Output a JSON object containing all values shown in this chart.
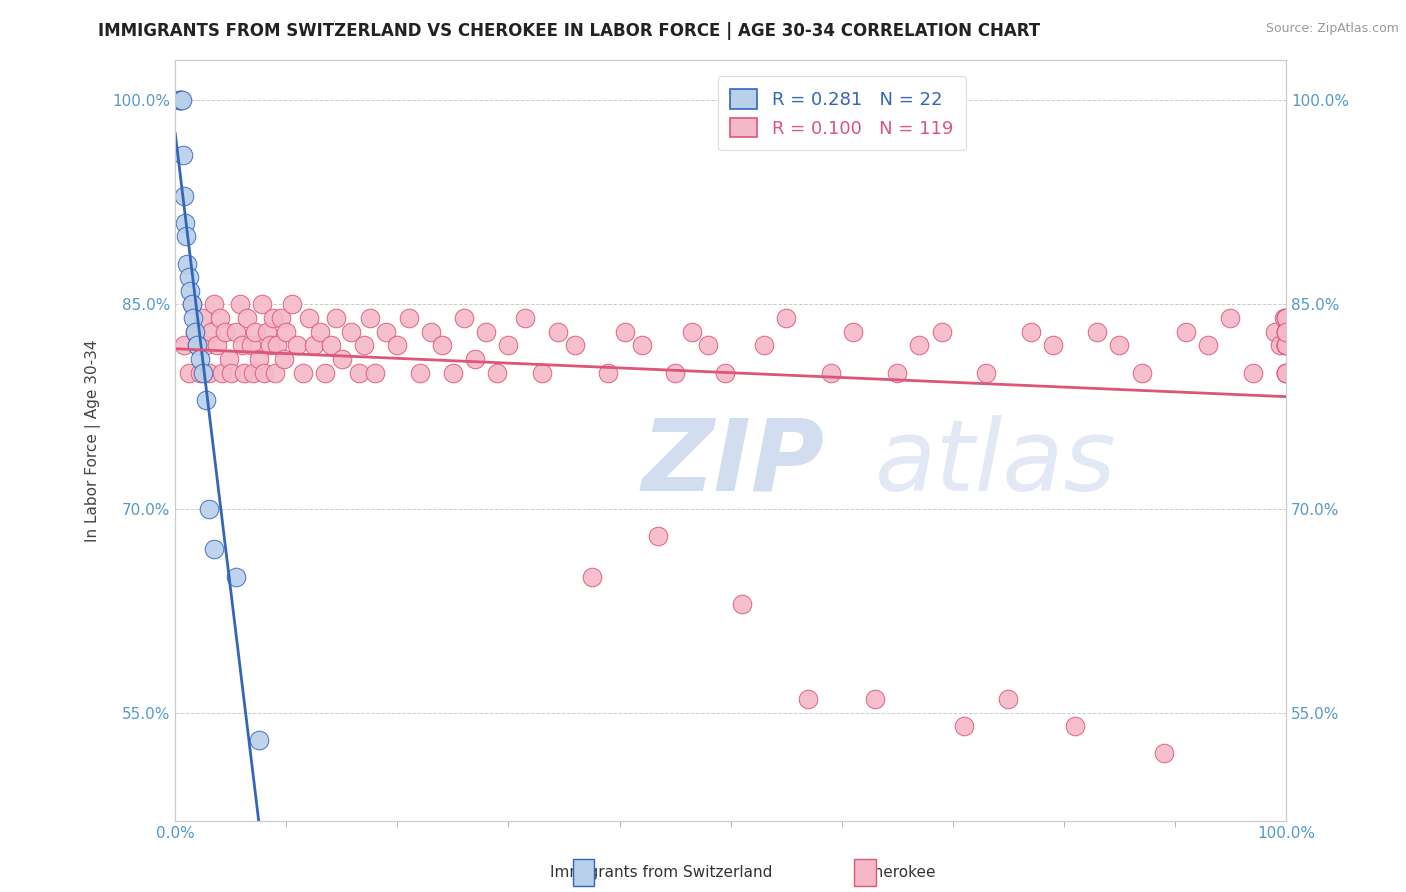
{
  "title": "IMMIGRANTS FROM SWITZERLAND VS CHEROKEE IN LABOR FORCE | AGE 30-34 CORRELATION CHART",
  "source_text": "Source: ZipAtlas.com",
  "ylabel": "In Labor Force | Age 30-34",
  "xlim": [
    0.0,
    1.0
  ],
  "ylim": [
    0.47,
    1.03
  ],
  "ytick_values": [
    0.55,
    0.7,
    0.85,
    1.0
  ],
  "legend_r_swiss": "0.281",
  "legend_n_swiss": "22",
  "legend_r_cherokee": "0.100",
  "legend_n_cherokee": "119",
  "swiss_color": "#b8d0ea",
  "cherokee_color": "#f5b8c8",
  "swiss_line_color": "#3366bb",
  "cherokee_line_color": "#dd5577",
  "swiss_x": [
    0.003,
    0.004,
    0.005,
    0.006,
    0.007,
    0.008,
    0.009,
    0.01,
    0.011,
    0.012,
    0.013,
    0.015,
    0.016,
    0.018,
    0.02,
    0.022,
    0.025,
    0.028,
    0.03,
    0.035,
    0.055,
    0.075
  ],
  "swiss_y": [
    1.0,
    1.0,
    1.0,
    1.0,
    0.96,
    0.93,
    0.91,
    0.9,
    0.88,
    0.87,
    0.86,
    0.85,
    0.84,
    0.83,
    0.82,
    0.81,
    0.8,
    0.78,
    0.7,
    0.67,
    0.65,
    0.53
  ],
  "cherokee_x": [
    0.008,
    0.012,
    0.015,
    0.018,
    0.02,
    0.022,
    0.025,
    0.028,
    0.03,
    0.032,
    0.035,
    0.038,
    0.04,
    0.042,
    0.045,
    0.048,
    0.05,
    0.055,
    0.058,
    0.06,
    0.062,
    0.065,
    0.068,
    0.07,
    0.072,
    0.075,
    0.078,
    0.08,
    0.083,
    0.085,
    0.088,
    0.09,
    0.092,
    0.095,
    0.098,
    0.1,
    0.105,
    0.11,
    0.115,
    0.12,
    0.125,
    0.13,
    0.135,
    0.14,
    0.145,
    0.15,
    0.158,
    0.165,
    0.17,
    0.175,
    0.18,
    0.19,
    0.2,
    0.21,
    0.22,
    0.23,
    0.24,
    0.25,
    0.26,
    0.27,
    0.28,
    0.29,
    0.3,
    0.315,
    0.33,
    0.345,
    0.36,
    0.375,
    0.39,
    0.405,
    0.42,
    0.435,
    0.45,
    0.465,
    0.48,
    0.495,
    0.51,
    0.53,
    0.55,
    0.57,
    0.59,
    0.61,
    0.63,
    0.65,
    0.67,
    0.69,
    0.71,
    0.73,
    0.75,
    0.77,
    0.79,
    0.81,
    0.83,
    0.85,
    0.87,
    0.89,
    0.91,
    0.93,
    0.95,
    0.97,
    0.99,
    0.995,
    0.998,
    1.0,
    1.0,
    1.0,
    1.0,
    1.0,
    1.0,
    1.0,
    1.0,
    1.0,
    1.0,
    1.0,
    1.0,
    1.0,
    1.0,
    1.0,
    1.0
  ],
  "cherokee_y": [
    0.82,
    0.8,
    0.85,
    0.83,
    0.82,
    0.8,
    0.84,
    0.82,
    0.8,
    0.83,
    0.85,
    0.82,
    0.84,
    0.8,
    0.83,
    0.81,
    0.8,
    0.83,
    0.85,
    0.82,
    0.8,
    0.84,
    0.82,
    0.8,
    0.83,
    0.81,
    0.85,
    0.8,
    0.83,
    0.82,
    0.84,
    0.8,
    0.82,
    0.84,
    0.81,
    0.83,
    0.85,
    0.82,
    0.8,
    0.84,
    0.82,
    0.83,
    0.8,
    0.82,
    0.84,
    0.81,
    0.83,
    0.8,
    0.82,
    0.84,
    0.8,
    0.83,
    0.82,
    0.84,
    0.8,
    0.83,
    0.82,
    0.8,
    0.84,
    0.81,
    0.83,
    0.8,
    0.82,
    0.84,
    0.8,
    0.83,
    0.82,
    0.65,
    0.8,
    0.83,
    0.82,
    0.68,
    0.8,
    0.83,
    0.82,
    0.8,
    0.63,
    0.82,
    0.84,
    0.56,
    0.8,
    0.83,
    0.56,
    0.8,
    0.82,
    0.83,
    0.54,
    0.8,
    0.56,
    0.83,
    0.82,
    0.54,
    0.83,
    0.82,
    0.8,
    0.52,
    0.83,
    0.82,
    0.84,
    0.8,
    0.83,
    0.82,
    0.84,
    0.8,
    0.82,
    0.83,
    0.8,
    0.82,
    0.84,
    0.82,
    0.83,
    0.8,
    0.84,
    0.82,
    0.83,
    0.8,
    0.82,
    0.84,
    0.83
  ]
}
